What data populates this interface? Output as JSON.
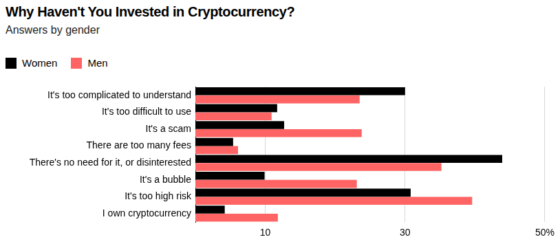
{
  "chart_data": {
    "type": "bar",
    "orientation": "horizontal",
    "title": "Why Haven't You Invested in Cryptocurrency?",
    "subtitle": "Answers by gender",
    "categories": [
      "It's too complicated to understand",
      "It's too difficult to use",
      "It's a scam",
      "There are too many fees",
      "There's no need for it, or disinterested",
      "It's a bubble",
      "It's too high risk",
      "I own cryptocurrency"
    ],
    "series": [
      {
        "name": "Women",
        "color": "#000000",
        "values": [
          30,
          11.7,
          12.7,
          5.4,
          43.9,
          9.9,
          30.8,
          4.2
        ]
      },
      {
        "name": "Men",
        "color": "#ff6464",
        "values": [
          23.5,
          10.9,
          23.8,
          6.1,
          35.2,
          23.1,
          39.6,
          11.8
        ]
      }
    ],
    "xlim": [
      0,
      50
    ],
    "xticks": [
      10,
      30,
      {
        "value": 50,
        "label": "50%"
      }
    ],
    "grid": true,
    "legend": "top-left"
  }
}
